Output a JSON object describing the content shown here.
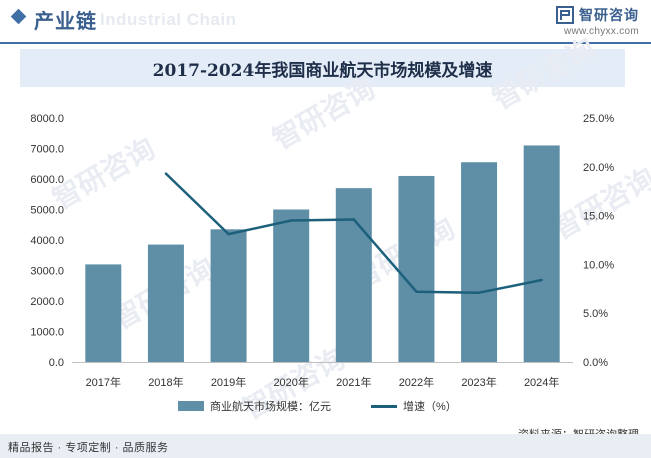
{
  "header": {
    "section_title": "产业链",
    "ghost_text": "Industrial Chain",
    "brand_name": "智研咨询",
    "brand_url": "www.chyxx.com"
  },
  "watermark": {
    "text": "智研咨询"
  },
  "chart_data": {
    "type": "bar+line",
    "title": "2017-2024年我国商业航天市场规模及增速",
    "categories": [
      "2017年",
      "2018年",
      "2019年",
      "2020年",
      "2021年",
      "2022年",
      "2023年",
      "2024年"
    ],
    "left_axis": {
      "ylim": [
        0,
        8000
      ],
      "ticks": [
        "0.0",
        "1000.0",
        "2000.0",
        "3000.0",
        "4000.0",
        "5000.0",
        "6000.0",
        "7000.0",
        "8000.0"
      ]
    },
    "right_axis": {
      "ylim": [
        0,
        25
      ],
      "ticks": [
        "0.0%",
        "5.0%",
        "10.0%",
        "15.0%",
        "20.0%",
        "25.0%"
      ]
    },
    "series": [
      {
        "name": "商业航天市场规模：亿元",
        "type": "bar",
        "axis": "left",
        "color": "#5e8fa7",
        "values": [
          3200,
          3850,
          4350,
          5000,
          5700,
          6100,
          6550,
          7100
        ]
      },
      {
        "name": "增速（%）",
        "type": "line",
        "axis": "right",
        "color": "#1c607c",
        "values": [
          null,
          19.3,
          13.1,
          14.5,
          14.6,
          7.2,
          7.1,
          8.4
        ]
      }
    ],
    "grid": false,
    "legend": "bottom"
  },
  "source": "资料来源：智研咨询整理",
  "footer": {
    "text": "精品报告 · 专项定制 · 品质服务"
  }
}
